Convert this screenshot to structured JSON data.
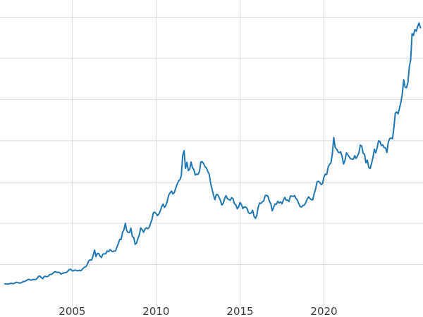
{
  "figure": {
    "background": "#ffffff",
    "grid_color": "#dcdcdc",
    "tick_label_color": "#3c3c3c"
  },
  "chart_data": {
    "type": "line",
    "title": "",
    "xlabel": "",
    "ylabel": "",
    "legend": "none",
    "grid": true,
    "line_color": "#1f77b4",
    "line_width": 2,
    "xlim": [
      2000.7,
      2025.9
    ],
    "ylim": [
      0,
      3700
    ],
    "xticks": [
      2005,
      2010,
      2015,
      2020
    ],
    "yticks": [
      500,
      1000,
      1500,
      2000,
      2500,
      3000,
      3500
    ],
    "x_start": 2001.0,
    "x_step": 0.0833333,
    "values": [
      266,
      262,
      263,
      265,
      272,
      270,
      268,
      274,
      284,
      283,
      276,
      276,
      281,
      295,
      294,
      303,
      314,
      321,
      313,
      310,
      319,
      317,
      319,
      333,
      357,
      359,
      340,
      328,
      355,
      356,
      351,
      360,
      379,
      379,
      390,
      407,
      414,
      405,
      406,
      403,
      384,
      392,
      398,
      400,
      405,
      420,
      439,
      442,
      424,
      423,
      434,
      429,
      422,
      430,
      424,
      437,
      456,
      470,
      477,
      510,
      550,
      555,
      557,
      611,
      675,
      596,
      634,
      632,
      598,
      586,
      627,
      630,
      631,
      665,
      655,
      679,
      667,
      655,
      665,
      665,
      713,
      755,
      806,
      803,
      890,
      922,
      1000,
      910,
      889,
      889,
      940,
      839,
      829,
      745,
      760,
      816,
      858,
      943,
      924,
      890,
      929,
      946,
      934,
      949,
      997,
      1043,
      1127,
      1135,
      1118,
      1095,
      1113,
      1149,
      1205,
      1233,
      1193,
      1216,
      1271,
      1342,
      1370,
      1390,
      1356,
      1373,
      1424,
      1474,
      1511,
      1529,
      1573,
      1820,
      1880,
      1666,
      1739,
      1640,
      1654,
      1743,
      1674,
      1650,
      1586,
      1597,
      1594,
      1626,
      1744,
      1747,
      1722,
      1685,
      1671,
      1627,
      1593,
      1486,
      1414,
      1343,
      1287,
      1347,
      1348,
      1316,
      1276,
      1222,
      1244,
      1301,
      1336,
      1299,
      1288,
      1279,
      1311,
      1296,
      1238,
      1223,
      1176,
      1201,
      1251,
      1227,
      1179,
      1198,
      1199,
      1181,
      1130,
      1117,
      1125,
      1159,
      1086,
      1060,
      1097,
      1200,
      1246,
      1242,
      1260,
      1276,
      1337,
      1340,
      1327,
      1266,
      1238,
      1152,
      1192,
      1234,
      1231,
      1266,
      1246,
      1260,
      1237,
      1283,
      1314,
      1280,
      1282,
      1264,
      1331,
      1330,
      1325,
      1335,
      1303,
      1281,
      1238,
      1201,
      1198,
      1215,
      1221,
      1250,
      1292,
      1320,
      1301,
      1286,
      1284,
      1359,
      1413,
      1500,
      1511,
      1495,
      1471,
      1479,
      1561,
      1597,
      1592,
      1683,
      1716,
      1732,
      1843,
      2040,
      1922,
      1900,
      1866,
      1856,
      1867,
      1808,
      1718,
      1762,
      1853,
      1835,
      1807,
      1784,
      1777,
      1777,
      1820,
      1787,
      1817,
      1856,
      1948,
      1937,
      1848,
      1837,
      1733,
      1765,
      1681,
      1664,
      1725,
      1797,
      1898,
      1855,
      1913,
      2000,
      1992,
      1943,
      1951,
      1918,
      1916,
      1860,
      1984,
      2028,
      2034,
      2025,
      2158,
      2336,
      2351,
      2327,
      2398,
      2470,
      2568,
      2740,
      2651,
      2644,
      2708,
      2897,
      2983,
      3300,
      3280,
      3350,
      3330,
      3390,
      3430,
      3370
    ]
  }
}
